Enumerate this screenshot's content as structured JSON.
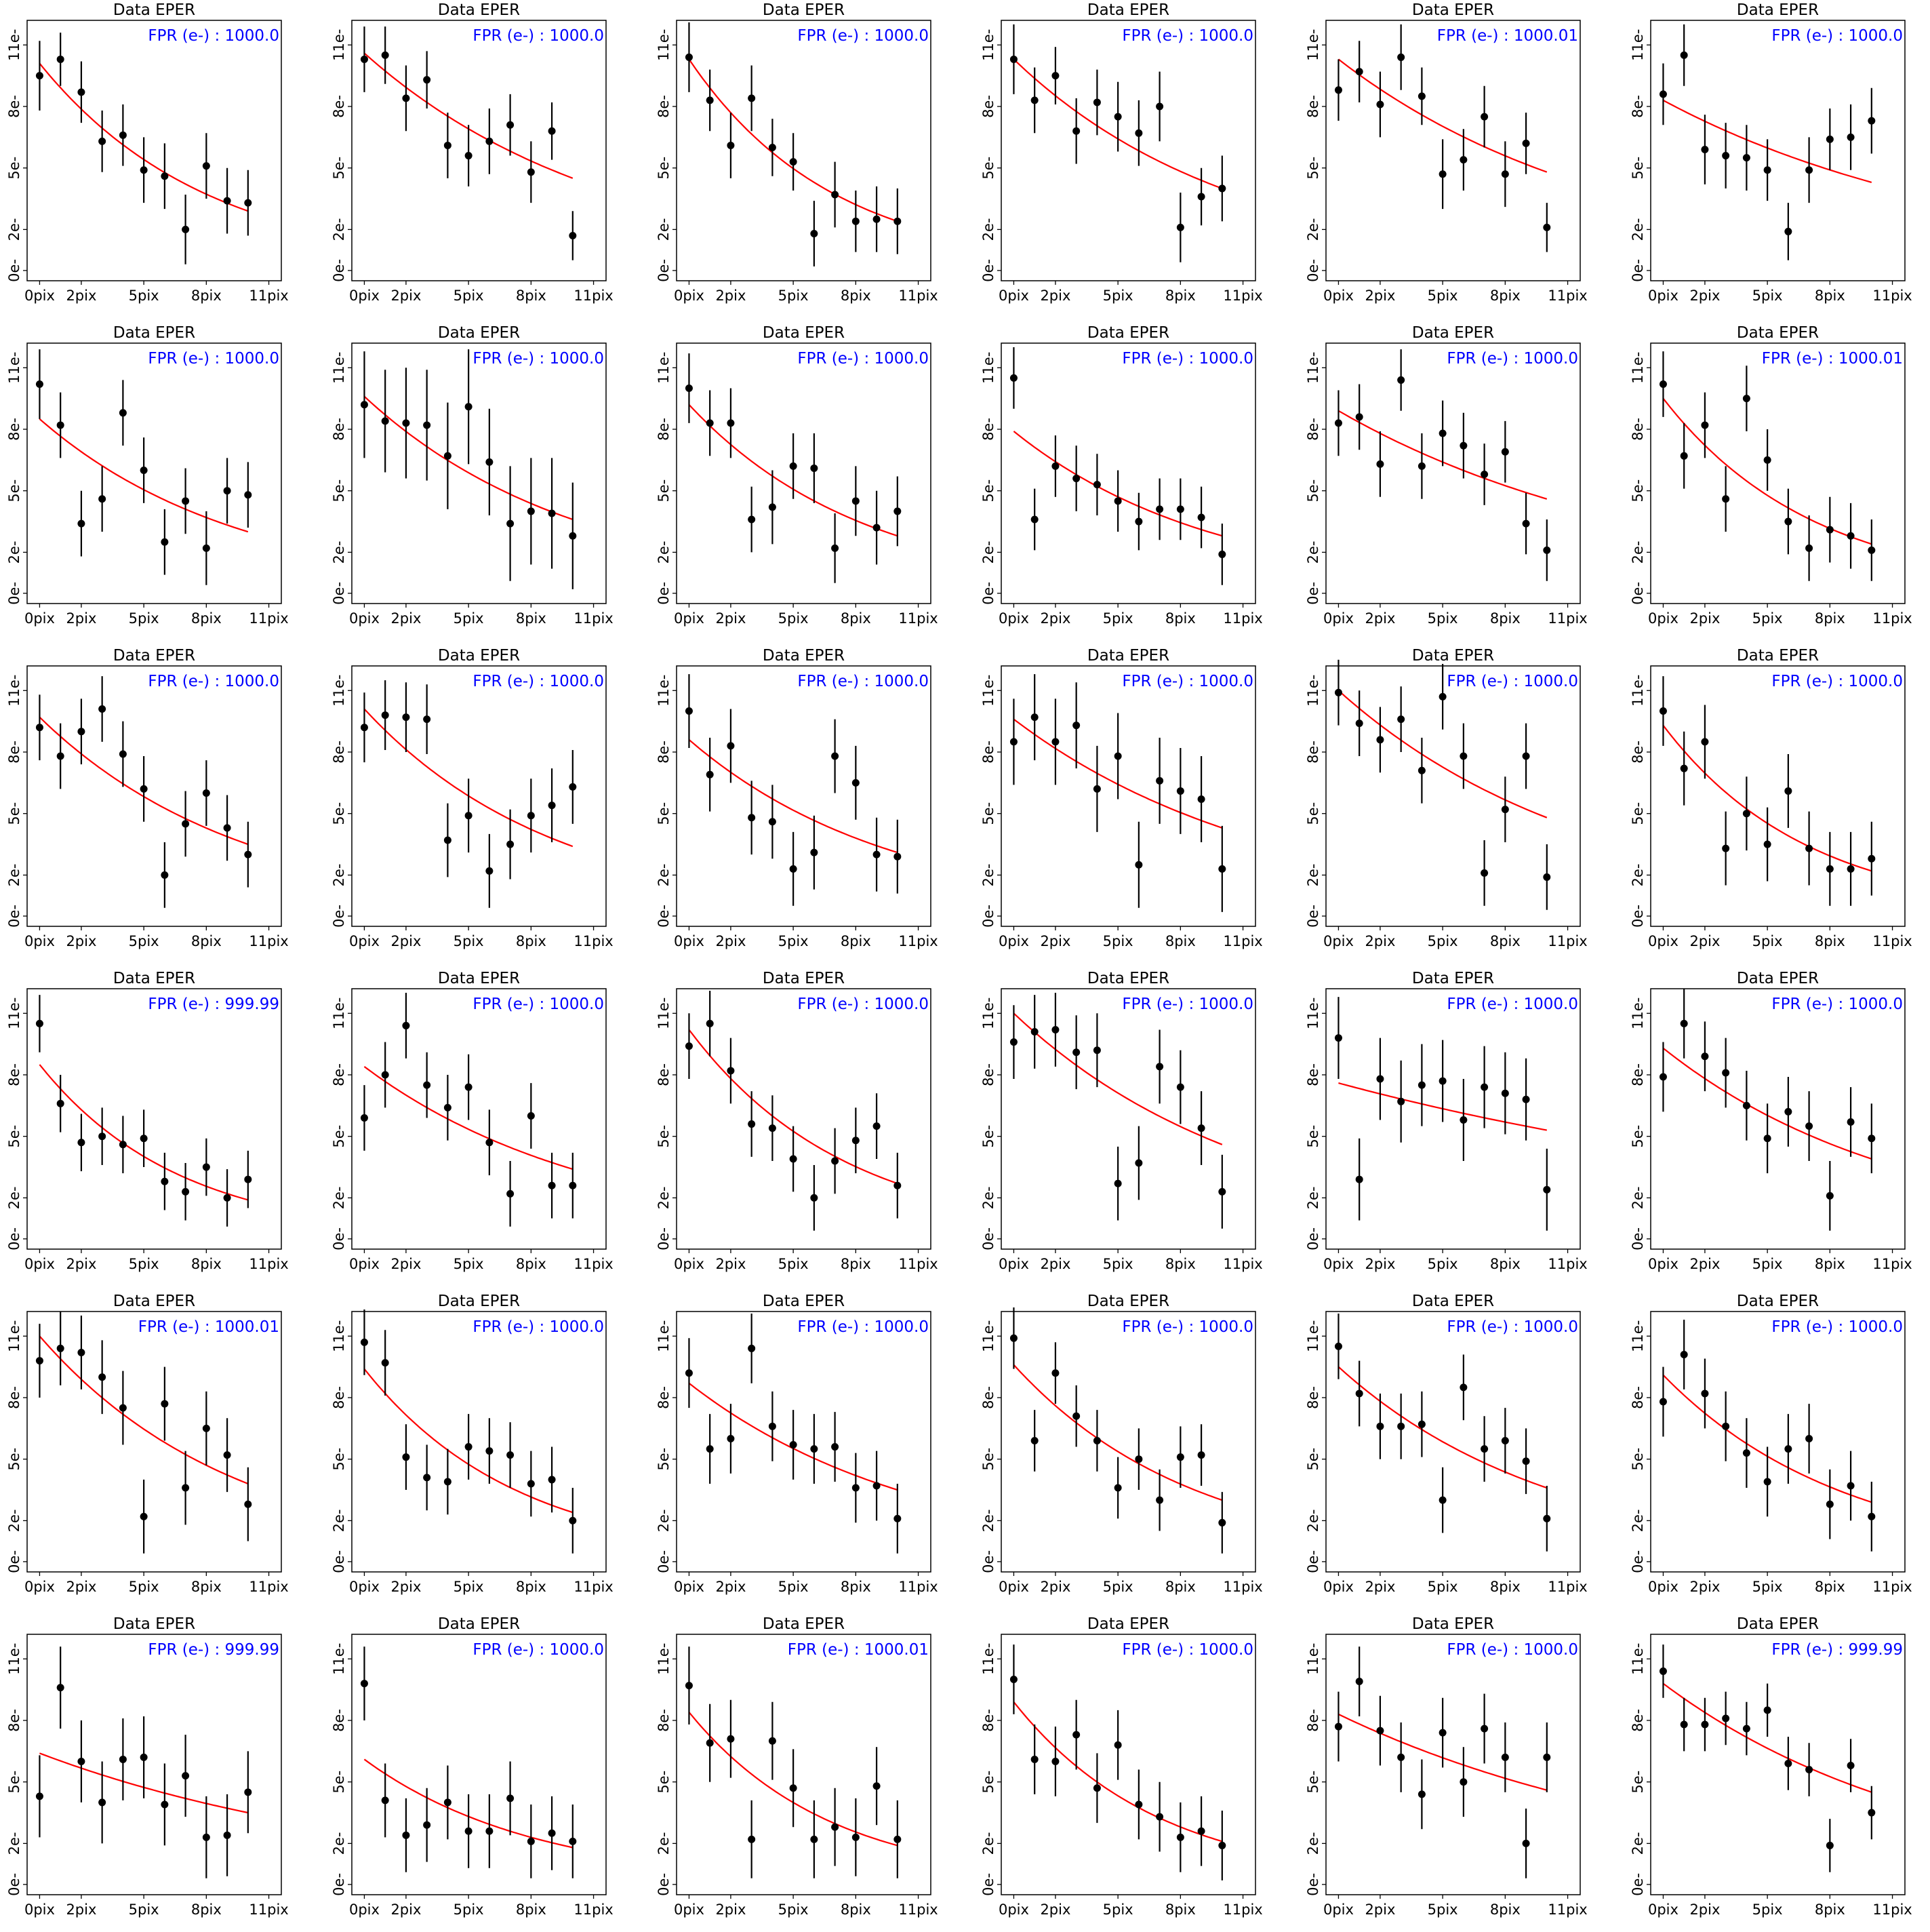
{
  "chart_data": {
    "type": "scatter",
    "layout": {
      "rows": 6,
      "cols": 6
    },
    "shared": {
      "title": "Data EPER",
      "xticks": [
        0,
        2,
        5,
        8,
        11
      ],
      "xtick_labels": [
        "0pix",
        "2pix",
        "5pix",
        "8pix",
        "11pix"
      ],
      "yticks": [
        0,
        2,
        5,
        8,
        11
      ],
      "ytick_labels": [
        "0e-",
        "2e-",
        "5e-",
        "8e-",
        "11e-"
      ],
      "xlim": [
        -0.6,
        11.6
      ],
      "ylim": [
        -0.5,
        12.2
      ],
      "point_color": "#000000",
      "fit_color": "#ff0000",
      "annotation_color": "#0000ff",
      "fit_model": "exponential"
    },
    "panels": [
      {
        "fpr": "FPR (e-) : 1000.0",
        "y": [
          9.5,
          10.3,
          8.7,
          6.3,
          6.6,
          4.9,
          4.6,
          2.0,
          5.1,
          3.4,
          3.3
        ],
        "err": [
          1.7,
          1.3,
          1.5,
          1.5,
          1.5,
          1.6,
          1.6,
          1.7,
          1.6,
          1.6,
          1.6
        ],
        "fit": [
          10.1,
          2.9
        ]
      },
      {
        "fpr": "FPR (e-) : 1000.0",
        "y": [
          10.3,
          10.5,
          8.4,
          9.3,
          6.1,
          5.6,
          6.3,
          7.1,
          4.8,
          6.8,
          1.7
        ],
        "err": [
          1.6,
          1.4,
          1.6,
          1.4,
          1.6,
          1.5,
          1.6,
          1.5,
          1.5,
          1.4,
          1.2
        ],
        "fit": [
          10.6,
          4.5
        ]
      },
      {
        "fpr": "FPR (e-) : 1000.0",
        "y": [
          10.4,
          8.3,
          6.1,
          8.4,
          6.0,
          5.3,
          1.8,
          3.7,
          2.4,
          2.5,
          2.4
        ],
        "err": [
          1.7,
          1.5,
          1.6,
          1.6,
          1.4,
          1.4,
          1.6,
          1.6,
          1.5,
          1.6,
          1.6
        ],
        "fit": [
          10.3,
          2.4
        ]
      },
      {
        "fpr": "FPR (e-) : 1000.0",
        "y": [
          10.3,
          8.3,
          9.5,
          6.8,
          8.2,
          7.5,
          6.7,
          8.0,
          2.1,
          3.6,
          4.0
        ],
        "err": [
          1.7,
          1.6,
          1.4,
          1.6,
          1.6,
          1.7,
          1.6,
          1.7,
          1.7,
          1.4,
          1.6
        ],
        "fit": [
          10.3,
          4.0
        ]
      },
      {
        "fpr": "FPR (e-) : 1000.01",
        "y": [
          8.8,
          9.7,
          8.1,
          10.4,
          8.5,
          4.7,
          5.4,
          7.5,
          4.7,
          6.2,
          2.1
        ],
        "err": [
          1.5,
          1.5,
          1.6,
          1.6,
          1.4,
          1.7,
          1.5,
          1.5,
          1.6,
          1.5,
          1.2
        ],
        "fit": [
          10.3,
          4.8
        ]
      },
      {
        "fpr": "FPR (e-) : 1000.0",
        "y": [
          8.6,
          10.5,
          5.9,
          5.6,
          5.5,
          4.9,
          1.9,
          4.9,
          6.4,
          6.5,
          7.3
        ],
        "err": [
          1.5,
          1.5,
          1.7,
          1.6,
          1.6,
          1.5,
          1.4,
          1.6,
          1.5,
          1.6,
          1.6
        ],
        "fit": [
          8.3,
          4.3
        ]
      },
      {
        "fpr": "FPR (e-) : 1000.0",
        "y": [
          10.2,
          8.2,
          3.4,
          4.6,
          8.8,
          6.0,
          2.5,
          4.5,
          2.2,
          5.0,
          4.8
        ],
        "err": [
          1.7,
          1.6,
          1.6,
          1.6,
          1.6,
          1.6,
          1.6,
          1.6,
          1.8,
          1.6,
          1.6
        ],
        "fit": [
          8.5,
          3.0
        ]
      },
      {
        "fpr": "FPR (e-) : 1000.0",
        "y": [
          9.2,
          8.4,
          8.3,
          8.2,
          6.7,
          9.1,
          6.4,
          3.4,
          4.0,
          3.9,
          2.8
        ],
        "err": [
          2.6,
          2.5,
          2.7,
          2.7,
          2.6,
          2.8,
          2.6,
          2.8,
          2.6,
          2.7,
          2.6
        ],
        "fit": [
          9.6,
          3.6
        ]
      },
      {
        "fpr": "FPR (e-) : 1000.0",
        "y": [
          10.0,
          8.3,
          8.3,
          3.6,
          4.2,
          6.2,
          6.1,
          2.2,
          4.5,
          3.2,
          4.0
        ],
        "err": [
          1.7,
          1.6,
          1.7,
          1.6,
          1.8,
          1.6,
          1.7,
          1.7,
          1.7,
          1.8,
          1.7
        ],
        "fit": [
          9.2,
          2.8
        ]
      },
      {
        "fpr": "FPR (e-) : 1000.0",
        "y": [
          10.5,
          3.6,
          6.2,
          5.6,
          5.3,
          4.5,
          3.5,
          4.1,
          4.1,
          3.7,
          1.9
        ],
        "err": [
          1.5,
          1.5,
          1.5,
          1.6,
          1.5,
          1.5,
          1.4,
          1.5,
          1.5,
          1.5,
          1.5
        ],
        "fit": [
          7.9,
          2.8
        ]
      },
      {
        "fpr": "FPR (e-) : 1000.0",
        "y": [
          8.3,
          8.6,
          6.3,
          10.4,
          6.2,
          7.8,
          7.2,
          5.8,
          6.9,
          3.4,
          2.1
        ],
        "err": [
          1.6,
          1.6,
          1.6,
          1.5,
          1.6,
          1.6,
          1.6,
          1.5,
          1.5,
          1.5,
          1.5
        ],
        "fit": [
          8.9,
          4.6
        ]
      },
      {
        "fpr": "FPR (e-) : 1000.01",
        "y": [
          10.2,
          6.7,
          8.2,
          4.6,
          9.5,
          6.5,
          3.5,
          2.2,
          3.1,
          2.8,
          2.1
        ],
        "err": [
          1.6,
          1.6,
          1.6,
          1.6,
          1.6,
          1.5,
          1.6,
          1.6,
          1.6,
          1.6,
          1.5
        ],
        "fit": [
          9.5,
          2.4
        ]
      },
      {
        "fpr": "FPR (e-) : 1000.0",
        "y": [
          9.2,
          7.8,
          9.0,
          10.1,
          7.9,
          6.2,
          2.0,
          4.5,
          6.0,
          4.3,
          3.0
        ],
        "err": [
          1.6,
          1.6,
          1.6,
          1.6,
          1.6,
          1.6,
          1.6,
          1.6,
          1.6,
          1.6,
          1.6
        ],
        "fit": [
          9.7,
          3.5
        ]
      },
      {
        "fpr": "FPR (e-) : 1000.0",
        "y": [
          9.2,
          9.8,
          9.7,
          9.6,
          3.7,
          4.9,
          2.2,
          3.5,
          4.9,
          5.4,
          6.3
        ],
        "err": [
          1.7,
          1.7,
          1.7,
          1.7,
          1.8,
          1.8,
          1.8,
          1.7,
          1.8,
          1.8,
          1.8
        ],
        "fit": [
          10.1,
          3.4
        ]
      },
      {
        "fpr": "FPR (e-) : 1000.0",
        "y": [
          10.0,
          6.9,
          8.3,
          4.8,
          4.6,
          2.3,
          3.1,
          7.8,
          6.5,
          3.0,
          2.9
        ],
        "err": [
          1.8,
          1.8,
          1.8,
          1.8,
          1.8,
          1.8,
          1.8,
          1.8,
          1.8,
          1.8,
          1.8
        ],
        "fit": [
          8.6,
          3.1
        ]
      },
      {
        "fpr": "FPR (e-) : 1000.0",
        "y": [
          8.5,
          9.7,
          8.5,
          9.3,
          6.2,
          7.8,
          2.5,
          6.6,
          6.1,
          5.7,
          2.3
        ],
        "err": [
          2.1,
          2.1,
          2.1,
          2.1,
          2.1,
          2.1,
          2.1,
          2.1,
          2.1,
          2.1,
          2.1
        ],
        "fit": [
          9.6,
          4.3
        ]
      },
      {
        "fpr": "FPR (e-) : 1000.0",
        "y": [
          10.9,
          9.4,
          8.6,
          9.6,
          7.1,
          10.7,
          7.8,
          2.1,
          5.2,
          7.8,
          1.9
        ],
        "err": [
          1.6,
          1.6,
          1.6,
          1.6,
          1.6,
          1.6,
          1.6,
          1.6,
          1.6,
          1.6,
          1.6
        ],
        "fit": [
          11.0,
          4.8
        ]
      },
      {
        "fpr": "FPR (e-) : 1000.0",
        "y": [
          10.0,
          7.2,
          8.5,
          3.3,
          5.0,
          3.5,
          6.1,
          3.3,
          2.3,
          2.3,
          2.8
        ],
        "err": [
          1.7,
          1.8,
          1.8,
          1.8,
          1.8,
          1.8,
          1.8,
          1.8,
          1.8,
          1.8,
          1.8
        ],
        "fit": [
          9.3,
          2.2
        ]
      },
      {
        "fpr": "FPR (e-) : 999.99",
        "y": [
          10.5,
          6.6,
          4.7,
          5.0,
          4.6,
          4.9,
          2.8,
          2.3,
          3.5,
          2.0,
          2.9
        ],
        "err": [
          1.4,
          1.4,
          1.4,
          1.4,
          1.4,
          1.4,
          1.4,
          1.4,
          1.4,
          1.4,
          1.4
        ],
        "fit": [
          8.5,
          1.9
        ]
      },
      {
        "fpr": "FPR (e-) : 1000.0",
        "y": [
          5.9,
          8.0,
          10.4,
          7.5,
          6.4,
          7.4,
          4.7,
          2.2,
          6.0,
          2.6,
          2.6
        ],
        "err": [
          1.6,
          1.6,
          1.6,
          1.6,
          1.6,
          1.6,
          1.6,
          1.6,
          1.6,
          1.6,
          1.6
        ],
        "fit": [
          8.4,
          3.4
        ]
      },
      {
        "fpr": "FPR (e-) : 1000.0",
        "y": [
          9.4,
          10.5,
          8.2,
          5.6,
          5.4,
          3.9,
          2.0,
          3.8,
          4.8,
          5.5,
          2.6
        ],
        "err": [
          1.6,
          1.6,
          1.6,
          1.6,
          1.6,
          1.6,
          1.6,
          1.6,
          1.6,
          1.6,
          1.6
        ],
        "fit": [
          10.2,
          2.7
        ]
      },
      {
        "fpr": "FPR (e-) : 1000.0",
        "y": [
          9.6,
          10.1,
          10.2,
          9.1,
          9.2,
          2.7,
          3.7,
          8.4,
          7.4,
          5.4,
          2.3
        ],
        "err": [
          1.8,
          1.8,
          1.8,
          1.8,
          1.8,
          1.8,
          1.8,
          1.8,
          1.8,
          1.8,
          1.8
        ],
        "fit": [
          11.0,
          4.6
        ]
      },
      {
        "fpr": "FPR (e-) : 1000.0",
        "y": [
          9.8,
          2.9,
          7.8,
          6.7,
          7.5,
          7.7,
          5.8,
          7.4,
          7.1,
          6.8,
          2.4
        ],
        "err": [
          2.0,
          2.0,
          2.0,
          2.0,
          2.0,
          2.0,
          2.0,
          2.0,
          2.0,
          2.0,
          2.0
        ],
        "fit": [
          7.6,
          5.3
        ]
      },
      {
        "fpr": "FPR (e-) : 1000.0",
        "y": [
          7.9,
          10.5,
          8.9,
          8.1,
          6.5,
          4.9,
          6.2,
          5.5,
          2.1,
          5.7,
          4.9
        ],
        "err": [
          1.7,
          1.7,
          1.7,
          1.7,
          1.7,
          1.7,
          1.7,
          1.7,
          1.7,
          1.7,
          1.7
        ],
        "fit": [
          9.3,
          3.9
        ]
      },
      {
        "fpr": "FPR (e-) : 1000.01",
        "y": [
          9.8,
          10.4,
          10.2,
          9.0,
          7.5,
          2.2,
          7.7,
          3.6,
          6.5,
          5.2,
          2.8
        ],
        "err": [
          1.8,
          1.8,
          1.8,
          1.8,
          1.8,
          1.8,
          1.8,
          1.8,
          1.8,
          1.8,
          1.8
        ],
        "fit": [
          11.0,
          3.8
        ]
      },
      {
        "fpr": "FPR (e-) : 1000.0",
        "y": [
          10.7,
          9.7,
          5.1,
          4.1,
          3.9,
          5.6,
          5.4,
          5.2,
          3.8,
          4.0,
          2.0
        ],
        "err": [
          1.6,
          1.6,
          1.6,
          1.6,
          1.6,
          1.6,
          1.6,
          1.6,
          1.6,
          1.6,
          1.6
        ],
        "fit": [
          9.4,
          2.4
        ]
      },
      {
        "fpr": "FPR (e-) : 1000.0",
        "y": [
          9.2,
          5.5,
          6.0,
          10.4,
          6.6,
          5.7,
          5.5,
          5.6,
          3.6,
          3.7,
          2.1
        ],
        "err": [
          1.7,
          1.7,
          1.7,
          1.7,
          1.7,
          1.7,
          1.7,
          1.7,
          1.7,
          1.7,
          1.7
        ],
        "fit": [
          8.7,
          3.5
        ]
      },
      {
        "fpr": "FPR (e-) : 1000.0",
        "y": [
          10.9,
          5.9,
          9.2,
          7.1,
          5.9,
          3.6,
          5.0,
          3.0,
          5.1,
          5.2,
          1.9
        ],
        "err": [
          1.5,
          1.5,
          1.5,
          1.5,
          1.5,
          1.5,
          1.5,
          1.5,
          1.5,
          1.5,
          1.5
        ],
        "fit": [
          9.6,
          3.0
        ]
      },
      {
        "fpr": "FPR (e-) : 1000.0",
        "y": [
          10.5,
          8.2,
          6.6,
          6.6,
          6.7,
          3.0,
          8.5,
          5.5,
          5.9,
          4.9,
          2.1
        ],
        "err": [
          1.6,
          1.6,
          1.6,
          1.6,
          1.6,
          1.6,
          1.6,
          1.6,
          1.6,
          1.6,
          1.6
        ],
        "fit": [
          9.5,
          3.6
        ]
      },
      {
        "fpr": "FPR (e-) : 1000.0",
        "y": [
          7.8,
          10.1,
          8.2,
          6.6,
          5.3,
          3.9,
          5.5,
          6.0,
          2.8,
          3.7,
          2.2
        ],
        "err": [
          1.7,
          1.7,
          1.7,
          1.7,
          1.7,
          1.7,
          1.7,
          1.7,
          1.7,
          1.7,
          1.7
        ],
        "fit": [
          9.1,
          2.9
        ]
      },
      {
        "fpr": "FPR (e-) : 999.99",
        "y": [
          4.3,
          9.6,
          6.0,
          4.0,
          6.1,
          6.2,
          3.9,
          5.3,
          2.3,
          2.4,
          4.5
        ],
        "err": [
          2.0,
          2.0,
          2.0,
          2.0,
          2.0,
          2.0,
          2.0,
          2.0,
          2.0,
          2.0,
          2.0
        ],
        "fit": [
          6.4,
          3.5
        ]
      },
      {
        "fpr": "FPR (e-) : 1000.0",
        "y": [
          9.8,
          4.1,
          2.4,
          2.9,
          4.0,
          2.6,
          2.6,
          4.2,
          2.1,
          2.5,
          2.1
        ],
        "err": [
          1.8,
          1.8,
          1.8,
          1.8,
          1.8,
          1.8,
          1.8,
          1.8,
          1.8,
          1.8,
          1.8
        ],
        "fit": [
          6.1,
          1.8
        ]
      },
      {
        "fpr": "FPR (e-) : 1000.01",
        "y": [
          9.7,
          6.9,
          7.1,
          2.2,
          7.0,
          4.7,
          2.2,
          2.8,
          2.3,
          4.8,
          2.2
        ],
        "err": [
          1.9,
          1.9,
          1.9,
          1.9,
          1.9,
          1.9,
          1.9,
          1.9,
          1.9,
          1.9,
          1.9
        ],
        "fit": [
          8.4,
          1.9
        ]
      },
      {
        "fpr": "FPR (e-) : 1000.0",
        "y": [
          10.0,
          6.1,
          6.0,
          7.3,
          4.7,
          6.8,
          3.9,
          3.3,
          2.3,
          2.6,
          1.9
        ],
        "err": [
          1.7,
          1.7,
          1.7,
          1.7,
          1.7,
          1.7,
          1.7,
          1.7,
          1.7,
          1.7,
          1.7
        ],
        "fit": [
          8.9,
          2.1
        ]
      },
      {
        "fpr": "FPR (e-) : 1000.0",
        "y": [
          7.7,
          9.9,
          7.5,
          6.2,
          4.4,
          7.4,
          5.0,
          7.6,
          6.2,
          2.0,
          6.2
        ],
        "err": [
          1.7,
          1.7,
          1.7,
          1.7,
          1.7,
          1.7,
          1.7,
          1.7,
          1.7,
          1.7,
          1.7
        ],
        "fit": [
          8.3,
          4.6
        ]
      },
      {
        "fpr": "FPR (e-) : 999.99",
        "y": [
          10.4,
          7.8,
          7.8,
          8.1,
          7.6,
          8.5,
          5.9,
          5.6,
          1.9,
          5.8,
          3.5
        ],
        "err": [
          1.3,
          1.3,
          1.3,
          1.3,
          1.3,
          1.3,
          1.3,
          1.3,
          1.3,
          1.3,
          1.3
        ],
        "fit": [
          9.8,
          4.5
        ]
      }
    ]
  }
}
